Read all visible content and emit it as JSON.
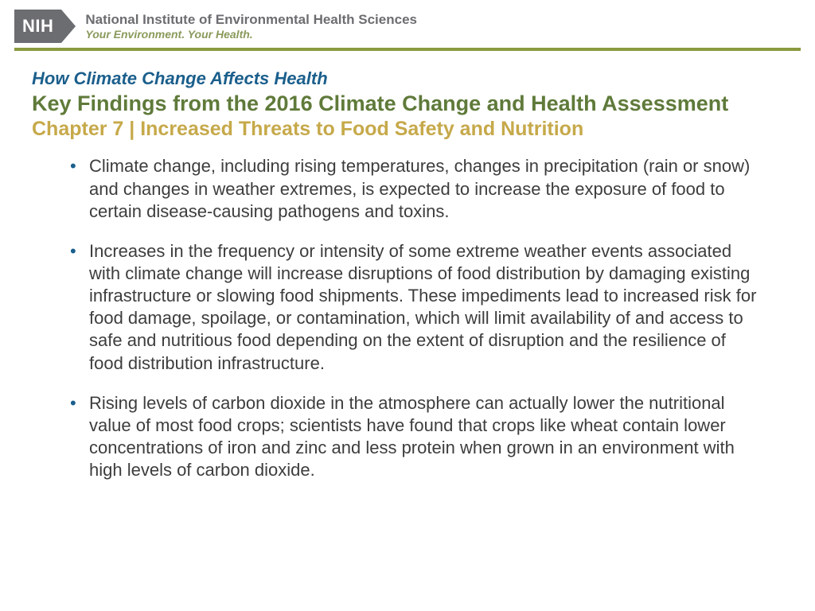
{
  "header": {
    "logo_text": "NIH",
    "org_name": "National Institute of Environmental Health Sciences",
    "org_tagline": "Your Environment. Your Health."
  },
  "colors": {
    "logo_bg": "#6c6d70",
    "divider_green": "#8a9a3f",
    "eyebrow": "#1b5f8c",
    "subtitle": "#5f7a3a",
    "chapter": "#c6a94a",
    "body_text": "#3d3d3d",
    "bullet_marker": "#1b5f8c"
  },
  "typography": {
    "eyebrow_fontsize": 22,
    "subtitle_fontsize": 27,
    "chapter_fontsize": 25,
    "body_fontsize": 22
  },
  "slide": {
    "eyebrow": "How Climate Change Affects Health",
    "subtitle": "Key Findings from the 2016 Climate Change and Health Assessment",
    "chapter": "Chapter 7 | Increased Threats to Food Safety and Nutrition",
    "bullets": [
      "Climate change, including rising temperatures, changes in precipitation (rain or snow) and changes in weather extremes, is expected to increase the exposure of food to certain disease-causing pathogens and toxins.",
      "Increases in the frequency or intensity of some extreme weather events associated with climate change will increase disruptions of food distribution by damaging existing infrastructure or slowing food shipments. These impediments lead to increased risk for food damage, spoilage, or contamination, which will limit availability of and access to safe and nutritious food depending on the extent of disruption and the resilience of food distribution infrastructure.",
      "Rising levels of carbon dioxide in the atmosphere can actually lower the nutritional value of most food crops; scientists have found that crops like wheat contain lower concentrations of iron and zinc and less protein when grown in an environment with high levels of carbon dioxide."
    ]
  }
}
